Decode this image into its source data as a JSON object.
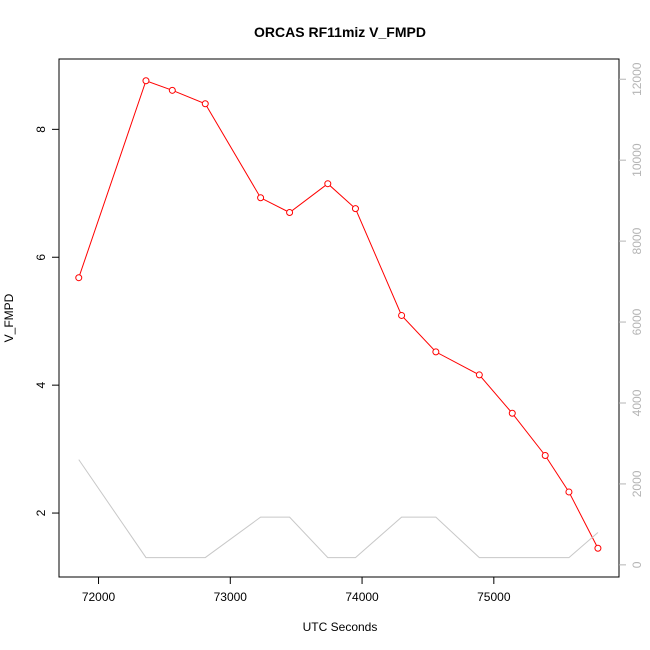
{
  "chart_data": {
    "type": "line",
    "title": "ORCAS RF11miz V_FMPD",
    "xlabel": "UTC Seconds",
    "ylabel": "V_FMPD",
    "xlim": [
      71700,
      75950
    ],
    "ylim": [
      1.0,
      9.1
    ],
    "y2lim": [
      -300,
      12500
    ],
    "x_ticks": [
      72000,
      73000,
      74000,
      75000
    ],
    "y_ticks": [
      2,
      4,
      6,
      8
    ],
    "y2_ticks": [
      0,
      2000,
      4000,
      6000,
      8000,
      10000,
      12000
    ],
    "colors": {
      "primary": "#ff0000",
      "secondary": "#c8c8c8",
      "axis": "#000000",
      "axis2": "#b4b4b4"
    },
    "series": [
      {
        "axis": "left",
        "style": "line+points",
        "x": [
          71850,
          72360,
          72560,
          72810,
          73230,
          73450,
          73740,
          73950,
          74300,
          74560,
          74890,
          75140,
          75390,
          75570,
          75790
        ],
        "values": [
          5.68,
          8.76,
          8.61,
          8.4,
          6.93,
          6.7,
          7.15,
          6.76,
          5.09,
          4.52,
          4.16,
          3.56,
          2.9,
          2.33,
          1.45
        ]
      },
      {
        "axis": "right",
        "style": "line",
        "x": [
          71850,
          72360,
          72560,
          72810,
          73230,
          73450,
          73740,
          73950,
          74300,
          74560,
          74890,
          75140,
          75390,
          75570,
          75790
        ],
        "values": [
          2600,
          180,
          180,
          180,
          1180,
          1180,
          180,
          180,
          1180,
          1180,
          180,
          180,
          180,
          180,
          800
        ]
      }
    ]
  }
}
